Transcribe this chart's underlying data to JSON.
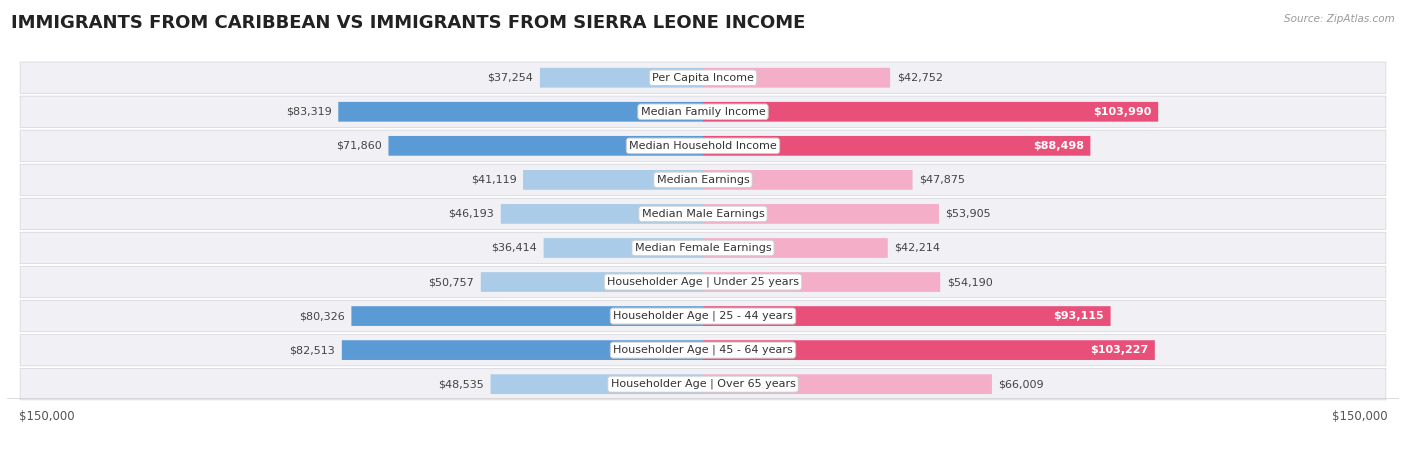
{
  "title": "IMMIGRANTS FROM CARIBBEAN VS IMMIGRANTS FROM SIERRA LEONE INCOME",
  "source": "Source: ZipAtlas.com",
  "categories": [
    "Per Capita Income",
    "Median Family Income",
    "Median Household Income",
    "Median Earnings",
    "Median Male Earnings",
    "Median Female Earnings",
    "Householder Age | Under 25 years",
    "Householder Age | 25 - 44 years",
    "Householder Age | 45 - 64 years",
    "Householder Age | Over 65 years"
  ],
  "caribbean_values": [
    37254,
    83319,
    71860,
    41119,
    46193,
    36414,
    50757,
    80326,
    82513,
    48535
  ],
  "sierraleone_values": [
    42752,
    103990,
    88498,
    47875,
    53905,
    42214,
    54190,
    93115,
    103227,
    66009
  ],
  "caribbean_color_light": "#aacce8",
  "caribbean_color_dark": "#5b9bd5",
  "sierraleone_color_light": "#f4aec8",
  "sierraleone_color_dark": "#e8507a",
  "max_value": 150000,
  "label_caribbean": "Immigrants from Caribbean",
  "label_sierraleone": "Immigrants from Sierra Leone",
  "bg_color": "#ffffff",
  "row_bg": "#f0f0f5",
  "title_fontsize": 13,
  "cat_fontsize": 8.0,
  "value_fontsize": 8.0,
  "caribbean_dark_threshold": 70000,
  "sierraleone_dark_threshold": 80000
}
